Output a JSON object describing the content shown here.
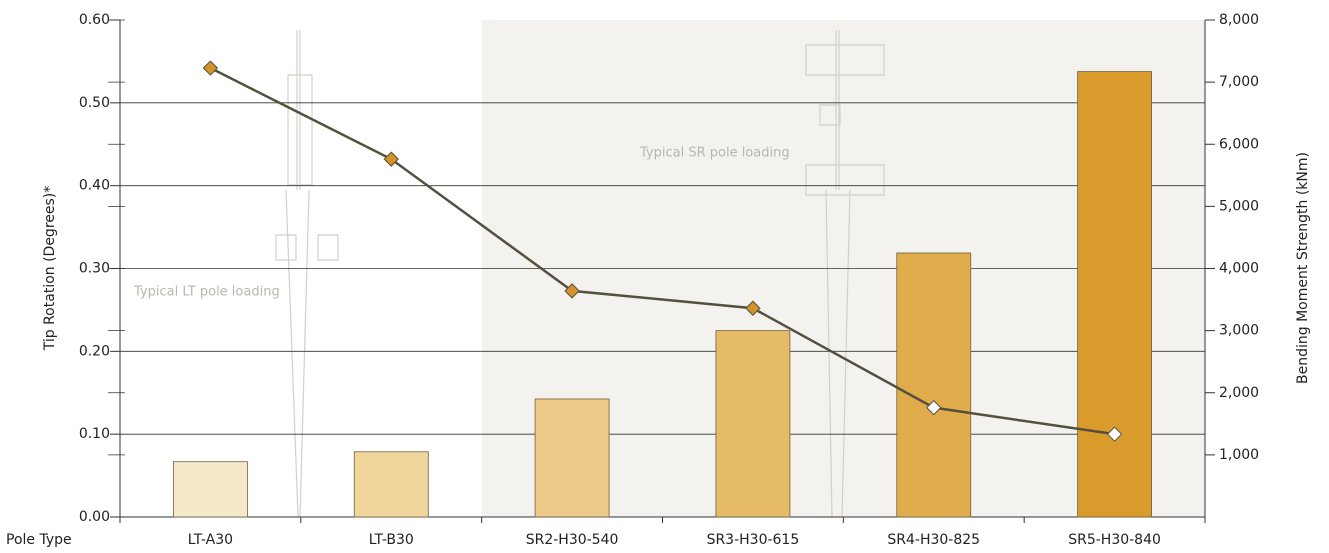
{
  "chart_data": {
    "type": "bar_line",
    "x_label": "Pole Type",
    "y_label": "Tip Rotation (Degrees)*",
    "y2_label": "Bending Moment Strength (kNm)",
    "categories": [
      "LT-A30",
      "LT-B30",
      "SR2-H30-540",
      "SR3-H30-615",
      "SR4-H30-825",
      "SR5-H30-840"
    ],
    "series": [
      {
        "type": "bar",
        "axis": "y2",
        "colors": [
          "#f4e9cb",
          "#f0d59d",
          "#edca88",
          "#e6bb67",
          "#e1ac4b",
          "#d99b2b"
        ],
        "values": [
          890,
          1050,
          1900,
          3000,
          4250,
          7170
        ]
      },
      {
        "type": "line",
        "axis": "y",
        "color": "#55503e",
        "marker_colors": [
          "#d4922a",
          "#d4922a",
          "#d4922a",
          "#d4922a",
          "#ffffff",
          "#ffffff"
        ],
        "values": [
          0.542,
          0.432,
          0.273,
          0.252,
          0.132,
          0.1
        ]
      }
    ],
    "annotations": [
      "Typical LT pole loading",
      "Typical SR pole loading"
    ],
    "ylim": [
      0,
      0.6
    ],
    "yticks": [
      {
        "value": 0,
        "label": "0.00"
      },
      {
        "value": 0.1,
        "label": "0.10"
      },
      {
        "value": 0.2,
        "label": "0.20"
      },
      {
        "value": 0.3,
        "label": "0.30"
      },
      {
        "value": 0.4,
        "label": "0.40"
      },
      {
        "value": 0.5,
        "label": "0.50"
      },
      {
        "value": 0.6,
        "label": "0.60"
      }
    ],
    "y2lim": [
      0,
      8000
    ],
    "y2ticks": [
      {
        "value": 1000,
        "label": "1,000"
      },
      {
        "value": 2000,
        "label": "2,000"
      },
      {
        "value": 3000,
        "label": "3,000"
      },
      {
        "value": 4000,
        "label": "4,000"
      },
      {
        "value": 5000,
        "label": "5,000"
      },
      {
        "value": 6000,
        "label": "6,000"
      },
      {
        "value": 7000,
        "label": "7,000"
      },
      {
        "value": 8000,
        "label": "8,000"
      }
    ],
    "grid": true
  }
}
